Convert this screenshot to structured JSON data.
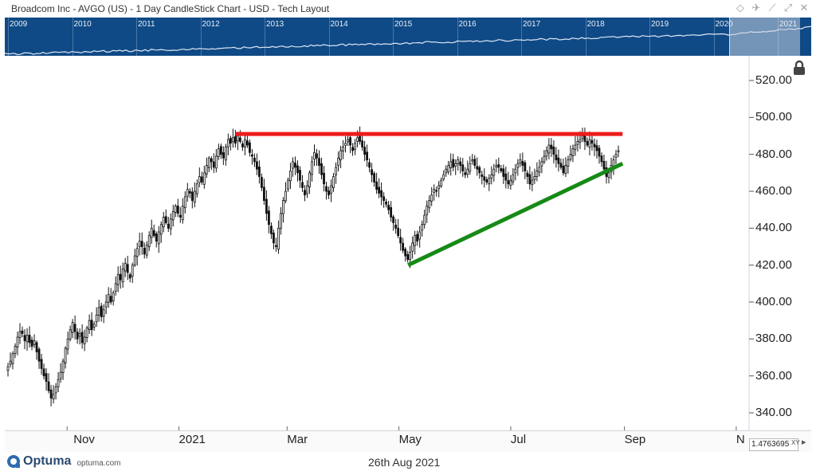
{
  "window": {
    "title": "Broadcom Inc - AVGO (US) - 1 Day CandleStick Chart - USD - Tech Layout"
  },
  "overview": {
    "years": [
      "2009",
      "2010",
      "2011",
      "2012",
      "2013",
      "2014",
      "2015",
      "2016",
      "2017",
      "2018",
      "2019",
      "2020",
      "2021"
    ]
  },
  "footer": {
    "brand": "Optuma",
    "url": "optuma.com",
    "date": "26th Aug 2021"
  },
  "scale_readout": "1.4763695",
  "scale_mode": "XY",
  "colors": {
    "resistance": "#ee1c1c",
    "support": "#168a16",
    "overview_bg": "#0f4a86",
    "candle": "#111111"
  },
  "chart_data": {
    "type": "candlestick",
    "ylim": [
      332,
      528
    ],
    "yticks": [
      "520.00",
      "500.00",
      "480.00",
      "460.00",
      "440.00",
      "420.00",
      "400.00",
      "380.00",
      "360.00",
      "340.00"
    ],
    "ytick_values": [
      520,
      500,
      480,
      460,
      440,
      420,
      400,
      380,
      360,
      340
    ],
    "xtick_labels": [
      "Nov",
      "2021",
      "Mar",
      "May",
      "Jul",
      "Sep",
      "N"
    ],
    "x_range": [
      "2020-09-28",
      "2021-11-08"
    ],
    "xtick_dates": [
      "2020-11-01",
      "2021-01-01",
      "2021-03-01",
      "2021-05-01",
      "2021-07-01",
      "2021-09-01",
      "2021-11-01"
    ],
    "closes": [
      365,
      368,
      372,
      376,
      381,
      384,
      383,
      379,
      382,
      378,
      376,
      379,
      373,
      368,
      364,
      360,
      357,
      352,
      348,
      350,
      354,
      358,
      362,
      368,
      375,
      380,
      385,
      389,
      384,
      380,
      383,
      378,
      381,
      386,
      390,
      385,
      388,
      393,
      397,
      392,
      396,
      400,
      404,
      400,
      405,
      410,
      415,
      412,
      418,
      421,
      416,
      413,
      420,
      425,
      429,
      433,
      430,
      426,
      431,
      436,
      440,
      436,
      433,
      438,
      442,
      446,
      443,
      440,
      445,
      449,
      452,
      448,
      446,
      452,
      457,
      461,
      459,
      455,
      460,
      464,
      468,
      465,
      470,
      474,
      478,
      476,
      473,
      479,
      483,
      480,
      478,
      484,
      488,
      486,
      489,
      486,
      490,
      487,
      484,
      488,
      485,
      481,
      479,
      476,
      472,
      468,
      462,
      455,
      448,
      442,
      437,
      432,
      430,
      440,
      448,
      455,
      460,
      466,
      471,
      476,
      473,
      470,
      466,
      462,
      458,
      463,
      470,
      476,
      481,
      478,
      474,
      469,
      464,
      460,
      458,
      463,
      468,
      473,
      478,
      482,
      484,
      486,
      488,
      485,
      482,
      486,
      489,
      487,
      484,
      480,
      477,
      473,
      469,
      465,
      461,
      459,
      457,
      455,
      453,
      450,
      446,
      443,
      440,
      436,
      432,
      428,
      425,
      423,
      427,
      432,
      436,
      433,
      438,
      442,
      447,
      452,
      455,
      458,
      461,
      460,
      463,
      466,
      469,
      472,
      474,
      476,
      473,
      475,
      477,
      474,
      471,
      469,
      472,
      475,
      477,
      474,
      472,
      470,
      468,
      466,
      465,
      467,
      469,
      472,
      474,
      473,
      471,
      468,
      466,
      464,
      466,
      469,
      472,
      475,
      477,
      474,
      471,
      468,
      464,
      466,
      468,
      471,
      473,
      476,
      479,
      482,
      485,
      483,
      480,
      477,
      475,
      473,
      470,
      474,
      477,
      480,
      483,
      485,
      487,
      488,
      490,
      487,
      485,
      488,
      486,
      484,
      482,
      479,
      476,
      472,
      468,
      470,
      474,
      477,
      480,
      482
    ],
    "annotations": [
      {
        "type": "horizontal-line",
        "name": "resistance",
        "value": 491,
        "x_start": "2021-02-01",
        "x_end": "2021-08-31"
      },
      {
        "type": "trendline",
        "name": "support",
        "start": {
          "x": "2021-05-06",
          "y": 420
        },
        "end": {
          "x": "2021-08-31",
          "y": 475
        }
      }
    ]
  }
}
